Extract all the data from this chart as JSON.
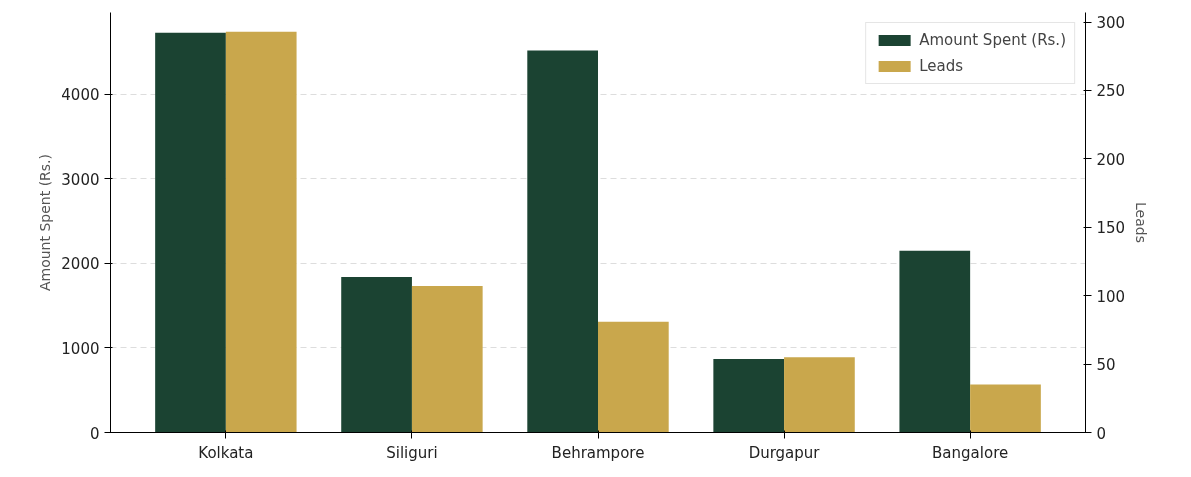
{
  "chart_data": {
    "type": "bar",
    "categories": [
      "Kolkata",
      "Siliguri",
      "Behrampore",
      "Durgapur",
      "Bangalore"
    ],
    "series": [
      {
        "name": "Amount Spent (Rs.)",
        "color": "#1b4332",
        "values": [
          4730,
          1840,
          4520,
          870,
          2150
        ]
      },
      {
        "name": "Leads",
        "color": "#c9a74c",
        "values": [
          293,
          107,
          81,
          55,
          35
        ],
        "axis": "y2"
      }
    ],
    "ylabel": "Amount Spent (Rs.)",
    "y2label": "Leads",
    "ylim": [
      0,
      4970
    ],
    "yticks": [
      0,
      1000,
      2000,
      3000,
      4000
    ],
    "y2lim": [
      0,
      307
    ],
    "y2ticks": [
      0,
      50,
      100,
      150,
      200,
      250,
      300
    ],
    "grid": "y",
    "legend": "top right"
  }
}
